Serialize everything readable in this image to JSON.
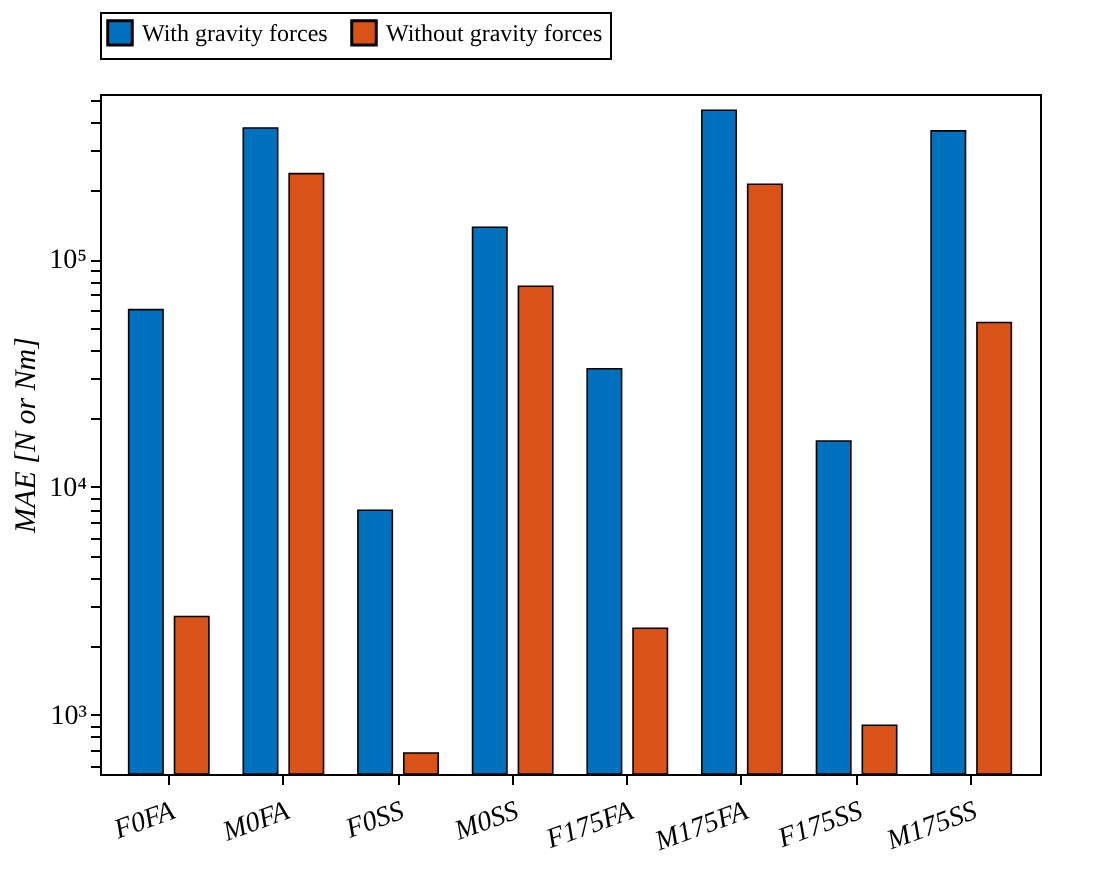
{
  "chart_data": {
    "type": "bar",
    "ylabel": "MAE [N or Nm]",
    "categories": [
      "F0FA",
      "M0FA",
      "F0SS",
      "M0SS",
      "F175FA",
      "M175FA",
      "F175SS",
      "M175SS"
    ],
    "series": [
      {
        "name": "With gravity forces",
        "color": "#0072bd",
        "values": [
          60000,
          376000,
          7900,
          138000,
          33000,
          450000,
          15900,
          365000
        ]
      },
      {
        "name": "Without gravity forces",
        "color": "#d95319",
        "values": [
          2700,
          237000,
          680,
          76000,
          2400,
          213000,
          900,
          52700
        ]
      }
    ],
    "log": "y",
    "ylim": [
      550,
      530000
    ],
    "yticks": [
      {
        "value": 600,
        "label": null
      },
      {
        "value": 700,
        "label": null
      },
      {
        "value": 800,
        "label": null
      },
      {
        "value": 900,
        "label": null
      },
      {
        "value": 1000,
        "label": "10³"
      },
      {
        "value": 2000,
        "label": null
      },
      {
        "value": 3000,
        "label": null
      },
      {
        "value": 4000,
        "label": null
      },
      {
        "value": 5000,
        "label": null
      },
      {
        "value": 6000,
        "label": null
      },
      {
        "value": 7000,
        "label": null
      },
      {
        "value": 8000,
        "label": null
      },
      {
        "value": 9000,
        "label": null
      },
      {
        "value": 10000,
        "label": "10⁴"
      },
      {
        "value": 20000,
        "label": null
      },
      {
        "value": 30000,
        "label": null
      },
      {
        "value": 40000,
        "label": null
      },
      {
        "value": 50000,
        "label": null
      },
      {
        "value": 60000,
        "label": null
      },
      {
        "value": 70000,
        "label": null
      },
      {
        "value": 80000,
        "label": null
      },
      {
        "value": 90000,
        "label": null
      },
      {
        "value": 100000,
        "label": "10⁵"
      },
      {
        "value": 200000,
        "label": null
      },
      {
        "value": 300000,
        "label": null
      },
      {
        "value": 400000,
        "label": null
      },
      {
        "value": 500000,
        "label": null
      }
    ],
    "grid": false,
    "legend": "top"
  }
}
